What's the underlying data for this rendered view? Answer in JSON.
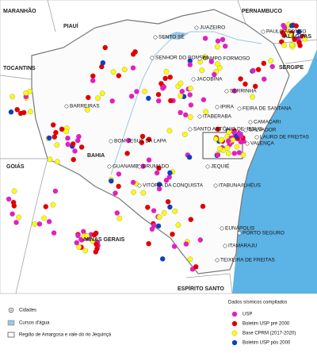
{
  "map": {
    "states": [
      "MARANHÃO",
      "PIAUÍ",
      "PERNAMBUCO",
      "TOCANTINS",
      "ALAGOAS",
      "SERGIPE",
      "BAHIA",
      "GOIÁS",
      "MINAS GERAIS",
      "ESPÍRITO SANTO"
    ],
    "cities": [
      "SENTO SÉ",
      "JUAZEIRO",
      "PAULO AFONSO",
      "SENHOR DO BONFIM",
      "CAMPO FORMOSO",
      "JACOBINA",
      "SERRINHA",
      "IPIRA",
      "FEIRA DE SANTANA",
      "BARREIRAS",
      "ITABERABA",
      "CAMAÇARI",
      "SANTO ANTÔNIO DE JESUS",
      "SALVADOR",
      "LAURO DE FREITAS",
      "VALENÇA",
      "BOM JESUS DA LAPA",
      "GUANAMBI",
      "BRUMADO",
      "JEQUIÉ",
      "VITÓRIA DA CONQUISTA",
      "ITABUNA/ILHÉUS",
      "EUNÁPOLIS",
      "PORTO SEGURO",
      "ITAMARAJU",
      "TEIXEIRA DE FREITAS"
    ]
  },
  "legend": {
    "left": [
      "Cidades",
      "Cursos d'água",
      "Região de Amargosa e vale do rio Jequiriçá"
    ],
    "title": "Dados sísmicos compilados",
    "items": [
      "USP",
      "Boletim USP pré 2000",
      "Base CPRM (2017-2020)",
      "Boletim USP pós 2000"
    ]
  }
}
